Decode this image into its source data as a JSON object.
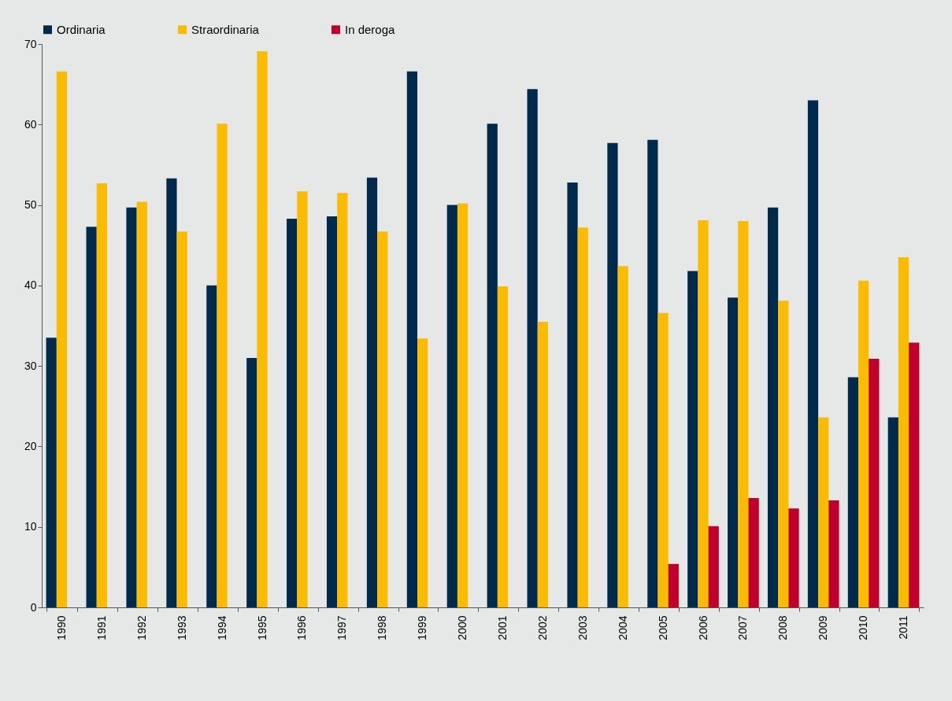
{
  "chart_data": {
    "type": "bar",
    "categories": [
      "1990",
      "1991",
      "1992",
      "1993",
      "1994",
      "1995",
      "1996",
      "1997",
      "1998",
      "1999",
      "2000",
      "2001",
      "2002",
      "2003",
      "2004",
      "2005",
      "2006",
      "2007",
      "2008",
      "2009",
      "2010",
      "2011"
    ],
    "series": [
      {
        "name": "Ordinaria",
        "color": "#002a4c",
        "values": [
          33.5,
          47.3,
          49.7,
          53.3,
          40.0,
          31.0,
          48.3,
          48.6,
          53.4,
          66.6,
          50.0,
          60.1,
          64.4,
          52.8,
          57.7,
          58.1,
          41.8,
          38.5,
          49.7,
          63.0,
          28.6,
          23.6
        ]
      },
      {
        "name": "Straordinaria",
        "color": "#fbbb00",
        "values": [
          66.6,
          52.7,
          50.4,
          46.7,
          60.1,
          69.1,
          51.7,
          51.5,
          46.7,
          33.4,
          50.2,
          39.9,
          35.5,
          47.2,
          42.4,
          36.6,
          48.1,
          48.0,
          38.1,
          23.6,
          40.6,
          43.5
        ]
      },
      {
        "name": "In deroga",
        "color": "#c0002a",
        "values": [
          null,
          null,
          null,
          null,
          null,
          null,
          null,
          null,
          null,
          null,
          null,
          null,
          null,
          null,
          null,
          5.4,
          10.1,
          13.6,
          12.3,
          13.3,
          30.9,
          32.9
        ]
      }
    ],
    "ylim": [
      0,
      70
    ],
    "yticks": [
      0,
      10,
      20,
      30,
      40,
      50,
      60,
      70
    ],
    "grid": false,
    "legend": "top"
  }
}
